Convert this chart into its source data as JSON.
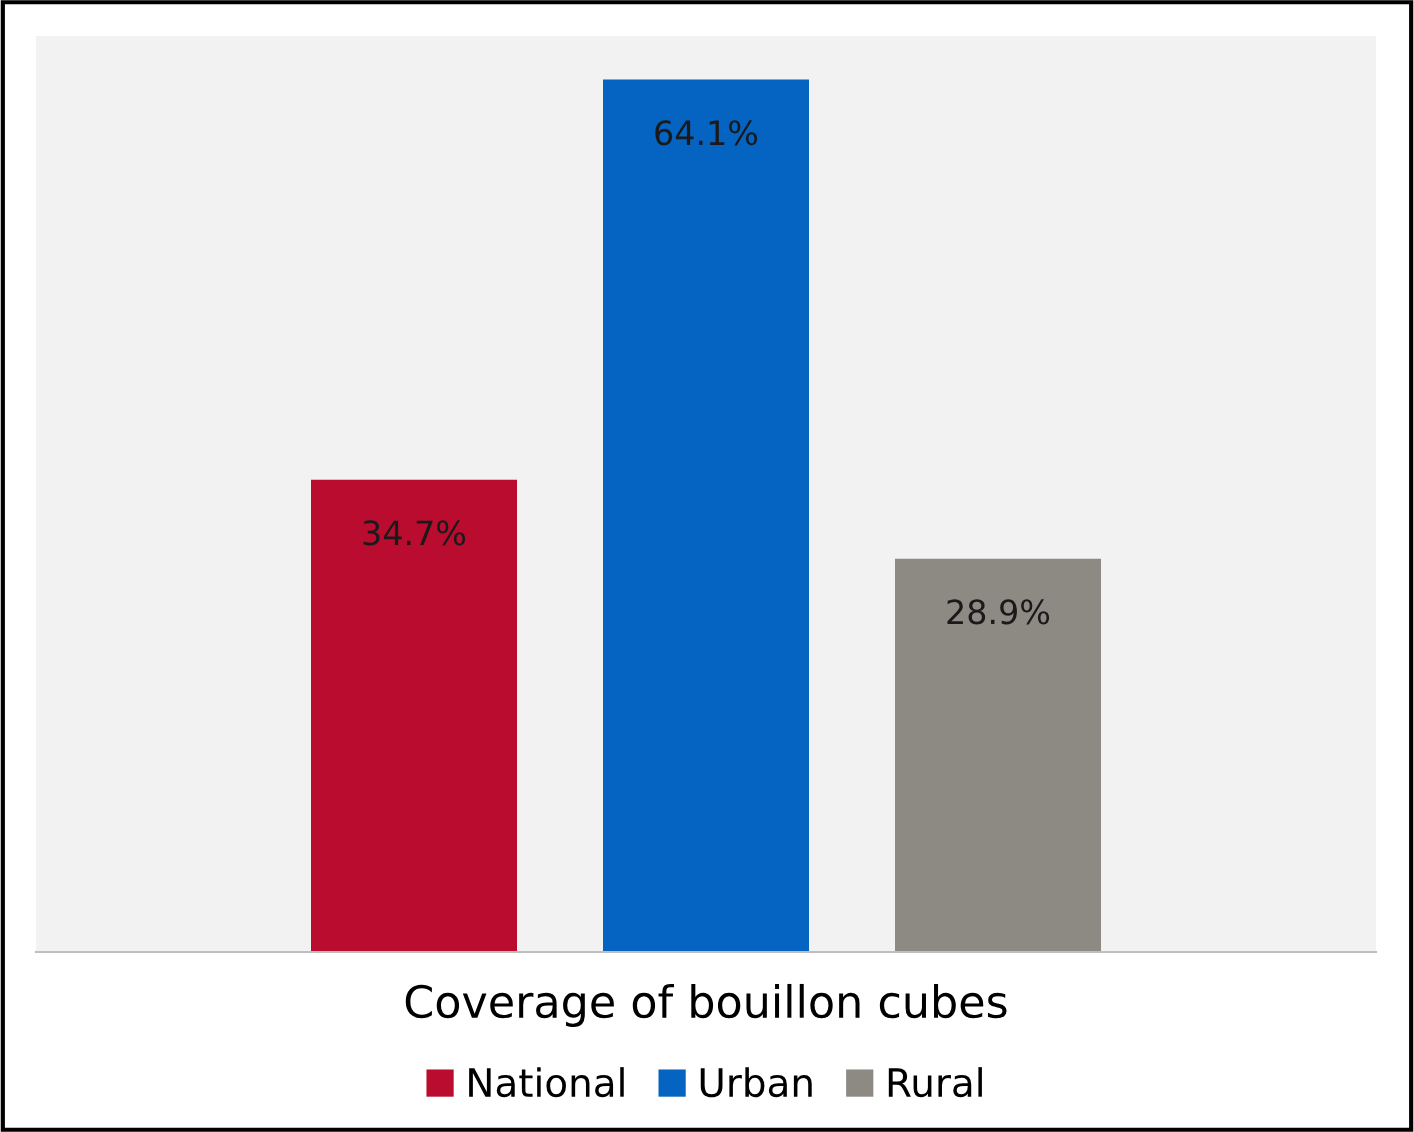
{
  "chart_data": {
    "type": "bar",
    "xlabel": "Coverage of bouillon cubes",
    "tick_labels": false,
    "legend": "bottom",
    "stacked": true,
    "categories": [
      null,
      null,
      null
    ],
    "series": [
      {
        "name": "National",
        "color": "#ba0c2f",
        "values": [
          34.7,
          null,
          null
        ],
        "value_labels": [
          "34.7%",
          null,
          null
        ]
      },
      {
        "name": "Urban",
        "color": "#0563c1",
        "values": [
          null,
          64.1,
          null
        ],
        "value_labels": [
          null,
          "64.1%",
          null
        ]
      },
      {
        "name": "Rural",
        "color": "#8d8983",
        "values": [
          null,
          null,
          28.9
        ],
        "value_labels": [
          null,
          null,
          "28.9%"
        ]
      }
    ]
  }
}
